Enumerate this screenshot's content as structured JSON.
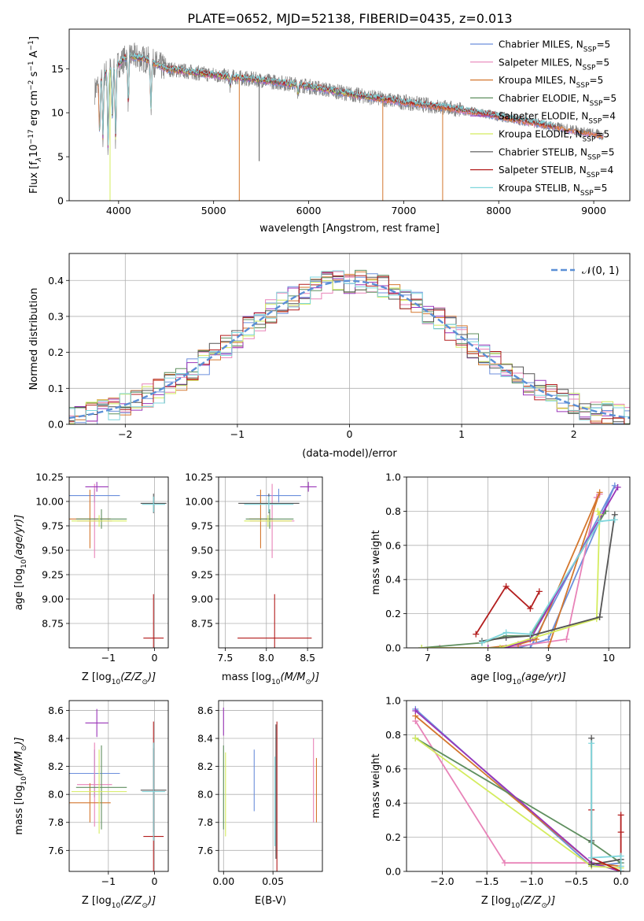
{
  "title": "PLATE=0652, MJD=52138, FIBERID=0435, z=0.013",
  "colors": {
    "Chabrier MILES": "#6c8fdc",
    "Salpeter MILES": "#e883b8",
    "Kroupa MILES": "#d4772e",
    "Chabrier ELODIE": "#5f8f5f",
    "Salpeter ELODIE": "#9a35b8",
    "Kroupa ELODIE": "#d4ec5e",
    "Chabrier STELIB": "#555555",
    "Salpeter STELIB": "#b31e1e",
    "Kroupa STELIB": "#7fd6dc",
    "data": "#808080",
    "normal": "#5b8fd6",
    "grid": "#b0b0b0"
  },
  "chart_data": [
    {
      "id": "spectrum",
      "type": "line",
      "xlabel": "wavelength [Angstrom, rest frame]",
      "ylabel_parts": [
        "Flux [f",
        "λ",
        "10",
        "−17",
        " erg cm",
        "−2",
        " s",
        "−1",
        " A",
        "−1",
        "]"
      ],
      "xlim": [
        3480,
        9380
      ],
      "ylim": [
        0,
        19.5
      ],
      "xticks": [
        4000,
        5000,
        6000,
        7000,
        8000,
        9000
      ],
      "yticks": [
        0,
        5,
        10,
        15
      ],
      "x_range": [
        3750,
        9100
      ],
      "legend_placement": "upper right",
      "legend": [
        {
          "prefix": "Chabrier MILES, N",
          "sub": "SSP",
          "suffix": "=5",
          "color": "#6c8fdc"
        },
        {
          "prefix": "Salpeter MILES, N",
          "sub": "SSP",
          "suffix": "=5",
          "color": "#e883b8"
        },
        {
          "prefix": "Kroupa MILES, N",
          "sub": "SSP",
          "suffix": "=5",
          "color": "#d4772e"
        },
        {
          "prefix": "Chabrier ELODIE, N",
          "sub": "SSP",
          "suffix": "=5",
          "color": "#5f8f5f"
        },
        {
          "prefix": "Salpeter ELODIE, N",
          "sub": "SSP",
          "suffix": "=4",
          "color": "#9a35b8"
        },
        {
          "prefix": "Kroupa ELODIE, N",
          "sub": "SSP",
          "suffix": "=5",
          "color": "#d4ec5e"
        },
        {
          "prefix": "Chabrier STELIB, N",
          "sub": "SSP",
          "suffix": "=5",
          "color": "#555555"
        },
        {
          "prefix": "Salpeter STELIB, N",
          "sub": "SSP",
          "suffix": "=4",
          "color": "#b31e1e"
        },
        {
          "prefix": "Kroupa STELIB, N",
          "sub": "SSP",
          "suffix": "=5",
          "color": "#7fd6dc"
        }
      ],
      "continuum": [
        [
          3750,
          12.5
        ],
        [
          3850,
          14.5
        ],
        [
          4000,
          15.5
        ],
        [
          4100,
          16.5
        ],
        [
          4300,
          16.0
        ],
        [
          4500,
          15.0
        ],
        [
          5000,
          14.3
        ],
        [
          5500,
          13.7
        ],
        [
          6000,
          13.0
        ],
        [
          6500,
          12.0
        ],
        [
          7000,
          11.2
        ],
        [
          7500,
          10.5
        ],
        [
          8000,
          9.6
        ],
        [
          8500,
          8.6
        ],
        [
          9000,
          7.6
        ],
        [
          9100,
          7.4
        ]
      ],
      "absorption_lines": [
        [
          3800,
          8.0
        ],
        [
          3835,
          7.2
        ],
        [
          3889,
          6.0
        ],
        [
          3934,
          9.5
        ],
        [
          3969,
          7.0
        ],
        [
          4102,
          11.0
        ],
        [
          4340,
          10.5
        ],
        [
          5175,
          13.0
        ],
        [
          5890,
          12.2
        ]
      ],
      "spikes": [
        [
          3910,
          0.0
        ],
        [
          5270,
          0.0
        ],
        [
          6780,
          0.0
        ],
        [
          7410,
          0.0
        ],
        [
          5480,
          4.5
        ]
      ]
    },
    {
      "id": "residuals",
      "type": "histogram",
      "xlabel": "(data-model)/error",
      "ylabel": "Normed distribution",
      "xlim": [
        -2.5,
        2.5
      ],
      "ylim": [
        0,
        0.475
      ],
      "xticks": [
        -2,
        -1,
        0,
        1,
        2
      ],
      "yticks": [
        0.0,
        0.1,
        0.2,
        0.3,
        0.4
      ],
      "legend": "𝒩(0, 1)",
      "legend_placement": "upper right",
      "bin_width": 0.1,
      "grid": true
    },
    {
      "id": "age-vs-Z",
      "type": "scatter",
      "xlabel_parts": [
        "Z [log",
        "10",
        "(Z/Z",
        "⊙",
        ")]"
      ],
      "ylabel_parts": [
        "age  [log",
        "10",
        "(age/yr)]"
      ],
      "xlim": [
        -1.85,
        0.3
      ],
      "ylim": [
        8.5,
        10.25
      ],
      "xticks": [
        -1,
        0
      ],
      "yticks": [
        8.75,
        9.0,
        9.25,
        9.5,
        9.75,
        10.0,
        10.25
      ],
      "points": [
        {
          "model": "Chabrier MILES",
          "x": -1.3,
          "xerr": 0.55,
          "y": 10.06,
          "yerr": 0.07
        },
        {
          "model": "Salpeter MILES",
          "x": -1.3,
          "xerr": 0.38,
          "y": 9.8,
          "yerr": 0.38
        },
        {
          "model": "Kroupa MILES",
          "x": -1.4,
          "xerr": 0.45,
          "y": 9.82,
          "yerr": 0.3
        },
        {
          "model": "Chabrier ELODIE",
          "x": -1.15,
          "xerr": 0.55,
          "y": 9.82,
          "yerr": 0.1
        },
        {
          "model": "Salpeter ELODIE",
          "x": -1.25,
          "xerr": 0.25,
          "y": 10.15,
          "yerr": 0.05
        },
        {
          "model": "Kroupa ELODIE",
          "x": -1.2,
          "xerr": 0.6,
          "y": 9.8,
          "yerr": 0.06
        },
        {
          "model": "Chabrier STELIB",
          "x": -0.02,
          "xerr": 0.28,
          "y": 9.98,
          "yerr": 0.1
        },
        {
          "model": "Salpeter STELIB",
          "x": -0.02,
          "xerr": 0.22,
          "y": 8.6,
          "yerr": 0.45
        },
        {
          "model": "Kroupa STELIB",
          "x": -0.02,
          "xerr": 0.25,
          "y": 9.97,
          "yerr": 0.08
        }
      ]
    },
    {
      "id": "age-vs-mass",
      "type": "scatter",
      "xlabel_parts": [
        "mass [log",
        "10",
        "(M/M",
        "⊙",
        ")]"
      ],
      "xlim": [
        7.42,
        8.68
      ],
      "ylim": [
        8.5,
        10.25
      ],
      "xticks": [
        7.5,
        8.0,
        8.5
      ],
      "yticks": [
        8.75,
        9.0,
        9.25,
        9.5,
        9.75,
        10.0,
        10.25
      ],
      "points": [
        {
          "model": "Chabrier MILES",
          "x": 8.15,
          "xerr": 0.27,
          "y": 10.06,
          "yerr": 0.07
        },
        {
          "model": "Salpeter MILES",
          "x": 8.07,
          "xerr": 0.27,
          "y": 9.8,
          "yerr": 0.38
        },
        {
          "model": "Kroupa MILES",
          "x": 7.93,
          "xerr": 0.14,
          "y": 9.82,
          "yerr": 0.3
        },
        {
          "model": "Chabrier ELODIE",
          "x": 8.04,
          "xerr": 0.29,
          "y": 9.82,
          "yerr": 0.1
        },
        {
          "model": "Salpeter ELODIE",
          "x": 8.51,
          "xerr": 0.1,
          "y": 10.15,
          "yerr": 0.05
        },
        {
          "model": "Kroupa ELODIE",
          "x": 8.02,
          "xerr": 0.29,
          "y": 9.8,
          "yerr": 0.06
        },
        {
          "model": "Chabrier STELIB",
          "x": 8.03,
          "xerr": 0.37,
          "y": 9.98,
          "yerr": 0.1
        },
        {
          "model": "Salpeter STELIB",
          "x": 8.1,
          "xerr": 0.45,
          "y": 8.6,
          "yerr": 0.45
        },
        {
          "model": "Kroupa STELIB",
          "x": 8.03,
          "xerr": 0.3,
          "y": 9.97,
          "yerr": 0.08
        }
      ]
    },
    {
      "id": "weight-vs-age",
      "type": "line",
      "xlabel_parts": [
        "age  [log",
        "10",
        "(age/yr)]"
      ],
      "ylabel": "mass weight",
      "xlim": [
        6.65,
        10.35
      ],
      "ylim": [
        0,
        1.0
      ],
      "xticks": [
        7,
        8,
        9,
        10
      ],
      "yticks": [
        0.0,
        0.2,
        0.4,
        0.6,
        0.8,
        1.0
      ],
      "series": [
        {
          "model": "Chabrier MILES",
          "x": [
            8.2,
            8.5,
            9.0,
            10.1,
            8.7
          ],
          "y": [
            0.0,
            0.0,
            0.05,
            0.95,
            0.0
          ]
        },
        {
          "model": "Salpeter MILES",
          "x": [
            7.2,
            8.3,
            9.3,
            9.8,
            9.85
          ],
          "y": [
            0.0,
            0.0,
            0.05,
            0.88,
            0.9
          ]
        },
        {
          "model": "Kroupa MILES",
          "x": [
            8.0,
            8.5,
            8.8,
            9.85,
            9.0
          ],
          "y": [
            0.0,
            0.02,
            0.05,
            0.91,
            0.0
          ]
        },
        {
          "model": "Chabrier ELODIE",
          "x": [
            6.9,
            7.9,
            8.3,
            8.7,
            9.95
          ],
          "y": [
            0.0,
            0.03,
            0.07,
            0.07,
            0.8
          ]
        },
        {
          "model": "Salpeter ELODIE",
          "x": [
            8.0,
            8.3,
            8.7,
            10.15
          ],
          "y": [
            0.0,
            0.0,
            0.05,
            0.94
          ]
        },
        {
          "model": "Kroupa ELODIE",
          "x": [
            6.9,
            8.2,
            9.8,
            9.85,
            9.82
          ],
          "y": [
            0.0,
            0.0,
            0.17,
            0.78,
            0.8
          ]
        },
        {
          "model": "Chabrier STELIB",
          "x": [
            7.9,
            8.3,
            8.7,
            9.85,
            10.1
          ],
          "y": [
            0.04,
            0.06,
            0.07,
            0.18,
            0.78
          ]
        },
        {
          "model": "Salpeter STELIB",
          "x": [
            7.8,
            8.3,
            8.7,
            8.85
          ],
          "y": [
            0.08,
            0.36,
            0.23,
            0.33
          ]
        },
        {
          "model": "Kroupa STELIB",
          "x": [
            7.9,
            8.3,
            8.7,
            9.85,
            10.1
          ],
          "y": [
            0.03,
            0.09,
            0.08,
            0.74,
            0.75
          ]
        }
      ]
    },
    {
      "id": "mass-vs-Z",
      "type": "scatter",
      "xlabel_parts": [
        "Z [log",
        "10",
        "(Z/Z",
        "⊙",
        ")]"
      ],
      "ylabel_parts": [
        "mass [log",
        "10",
        "(M/M",
        "⊙",
        ")]"
      ],
      "xlim": [
        -1.85,
        0.3
      ],
      "ylim": [
        7.45,
        8.67
      ],
      "xticks": [
        -1,
        0
      ],
      "yticks": [
        7.6,
        7.8,
        8.0,
        8.2,
        8.4,
        8.6
      ],
      "points": [
        {
          "model": "Chabrier MILES",
          "x": -1.3,
          "xerr": 0.55,
          "y": 8.15,
          "yerr": 0.17
        },
        {
          "model": "Salpeter MILES",
          "x": -1.3,
          "xerr": 0.38,
          "y": 8.07,
          "yerr": 0.3
        },
        {
          "model": "Kroupa MILES",
          "x": -1.4,
          "xerr": 0.45,
          "y": 7.94,
          "yerr": 0.14
        },
        {
          "model": "Chabrier ELODIE",
          "x": -1.15,
          "xerr": 0.55,
          "y": 8.05,
          "yerr": 0.3
        },
        {
          "model": "Salpeter ELODIE",
          "x": -1.25,
          "xerr": 0.25,
          "y": 8.51,
          "yerr": 0.1
        },
        {
          "model": "Kroupa ELODIE",
          "x": -1.2,
          "xerr": 0.6,
          "y": 8.02,
          "yerr": 0.3
        },
        {
          "model": "Chabrier STELIB",
          "x": -0.02,
          "xerr": 0.28,
          "y": 8.03,
          "yerr": 0.3
        },
        {
          "model": "Salpeter STELIB",
          "x": -0.02,
          "xerr": 0.22,
          "y": 7.7,
          "yerr": 0.82
        },
        {
          "model": "Kroupa STELIB",
          "x": -0.02,
          "xerr": 0.25,
          "y": 8.02,
          "yerr": 0.35
        }
      ]
    },
    {
      "id": "mass-vs-EBV",
      "type": "scatter",
      "xlabel": "E(B-V)",
      "xlim": [
        -0.005,
        0.1
      ],
      "ylim": [
        7.45,
        8.67
      ],
      "xticks": [
        0.0,
        0.05
      ],
      "yticks": [
        7.6,
        7.8,
        8.0,
        8.2,
        8.4,
        8.6
      ],
      "points": [
        {
          "model": "Chabrier MILES",
          "x": 0.031,
          "y": 8.1,
          "yerr": 0.22
        },
        {
          "model": "Salpeter MILES",
          "x": 0.091,
          "y": 8.1,
          "yerr": 0.3
        },
        {
          "model": "Kroupa MILES",
          "x": 0.094,
          "y": 8.03,
          "yerr": 0.23
        },
        {
          "model": "Chabrier ELODIE",
          "x": 0.0,
          "y": 8.05,
          "yerr": 0.3
        },
        {
          "model": "Salpeter ELODIE",
          "x": 0.0,
          "y": 8.52,
          "yerr": 0.1
        },
        {
          "model": "Kroupa ELODIE",
          "x": 0.002,
          "y": 8.0,
          "yerr": 0.3
        },
        {
          "model": "Chabrier STELIB",
          "x": 0.053,
          "y": 8.02,
          "yerr": 0.48
        },
        {
          "model": "Salpeter STELIB",
          "x": 0.054,
          "y": 7.95,
          "yerr": 0.57
        },
        {
          "model": "Kroupa STELIB",
          "x": 0.052,
          "y": 7.95,
          "yerr": 0.32
        }
      ]
    },
    {
      "id": "weight-vs-Z",
      "type": "line",
      "xlabel_parts": [
        "Z [log",
        "10",
        "(Z/Z",
        "⊙",
        ")]"
      ],
      "ylabel": "mass weight",
      "xlim": [
        -2.4,
        0.1
      ],
      "ylim": [
        0,
        1.0
      ],
      "xticks": [
        -2.0,
        -1.5,
        -1.0,
        -0.5,
        0.0
      ],
      "yticks": [
        0.0,
        0.2,
        0.4,
        0.6,
        0.8,
        1.0
      ],
      "series": [
        {
          "model": "Chabrier MILES",
          "x": [
            -2.3,
            -0.33,
            0.0,
            0.0
          ],
          "y": [
            0.95,
            0.03,
            0.05,
            0.0
          ]
        },
        {
          "model": "Salpeter MILES",
          "x": [
            -2.3,
            -1.3,
            -0.33,
            0.0
          ],
          "y": [
            0.88,
            0.05,
            0.05,
            0.0
          ]
        },
        {
          "model": "Kroupa MILES",
          "x": [
            -2.3,
            -0.33,
            0.0,
            0.0
          ],
          "y": [
            0.91,
            0.05,
            0.03,
            0.0
          ]
        },
        {
          "model": "Chabrier ELODIE",
          "x": [
            -2.3,
            -0.33,
            0.0,
            0.0
          ],
          "y": [
            0.78,
            0.17,
            0.05,
            0.0
          ]
        },
        {
          "model": "Salpeter ELODIE",
          "x": [
            -2.3,
            -0.33,
            0.0
          ],
          "y": [
            0.94,
            0.05,
            0.0
          ]
        },
        {
          "model": "Kroupa ELODIE",
          "x": [
            -2.3,
            -0.33,
            0.0,
            0.0
          ],
          "y": [
            0.78,
            0.03,
            0.02,
            0.0
          ]
        },
        {
          "model": "Chabrier STELIB",
          "x": [
            -0.33,
            -0.33,
            -0.33,
            0.0,
            0.0
          ],
          "y": [
            0.78,
            0.18,
            0.04,
            0.07,
            0.0
          ]
        },
        {
          "model": "Salpeter STELIB",
          "x": [
            -0.33,
            -0.33,
            0.0,
            0.0,
            0.0
          ],
          "y": [
            0.36,
            0.08,
            0.0,
            0.23,
            0.33
          ]
        },
        {
          "model": "Kroupa STELIB",
          "x": [
            -0.33,
            -0.33,
            0.0,
            0.0,
            0.0
          ],
          "y": [
            0.75,
            0.08,
            0.09,
            0.03,
            0.0
          ]
        }
      ]
    }
  ]
}
